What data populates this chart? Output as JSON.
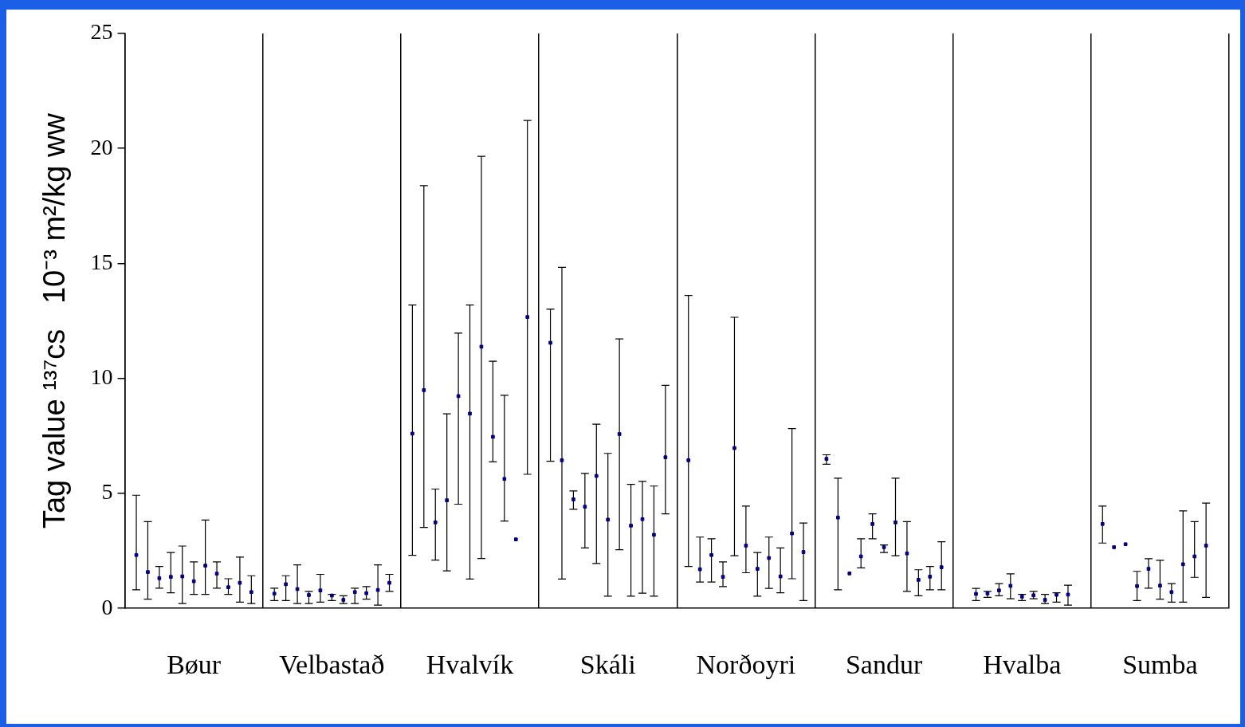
{
  "chart_data": {
    "type": "scatter",
    "ylabel": "Tag value ¹³⁷cs   10⁻³ m²/kg ww",
    "categories": [
      "Bøur",
      "Velbastað",
      "Hvalvík",
      "Skáli",
      "Norðoyri",
      "Sandur",
      "Hvalba",
      "Sumba"
    ],
    "ylim": [
      0,
      25
    ],
    "yticks": [
      0,
      5,
      10,
      15,
      20,
      25
    ],
    "grid": "x",
    "legend": false,
    "marker": "square",
    "series": [
      {
        "color": "#000080",
        "values": [
          2.32,
          0.64,
          7.6,
          11.55,
          6.44,
          6.5,
          null,
          3.67
        ],
        "errors": [
          [
            0.81,
            4.92
          ],
          [
            0.34,
            0.88
          ],
          [
            2.31,
            13.19
          ],
          [
            6.4,
            13.01
          ],
          [
            1.82,
            13.61
          ],
          [
            6.27,
            6.68
          ],
          null,
          [
            2.84,
            4.45
          ]
        ]
      },
      {
        "color": "#000080",
        "values": [
          1.58,
          1.05,
          9.49,
          6.44,
          1.7,
          3.95,
          0.63,
          2.66
        ],
        "errors": [
          [
            0.4,
            3.77
          ],
          [
            0.34,
            1.42
          ],
          [
            3.52,
            18.38
          ],
          [
            1.28,
            14.83
          ],
          [
            1.15,
            3.1
          ],
          [
            0.81,
            5.66
          ],
          [
            0.34,
            0.87
          ],
          null
        ]
      },
      {
        "color": "#000080",
        "values": [
          1.31,
          0.84,
          3.74,
          4.74,
          2.32,
          1.52,
          0.65,
          2.79
        ],
        "errors": [
          [
            0.88,
            1.82
          ],
          [
            0.21,
            1.89
          ],
          [
            2.1,
            5.19
          ],
          [
            4.31,
            5.11
          ],
          [
            1.15,
            3.03
          ],
          null,
          [
            0.48,
            0.74
          ],
          null
        ]
      },
      {
        "color": "#000080",
        "values": [
          1.37,
          0.58,
          4.7,
          4.42,
          1.37,
          2.26,
          0.78,
          0.97
        ],
        "errors": [
          [
            0.68,
            2.43
          ],
          [
            0.21,
            0.74
          ],
          [
            1.63,
            8.46
          ],
          [
            2.63,
            5.87
          ],
          [
            0.95,
            2.02
          ],
          [
            1.76,
            3.03
          ],
          [
            0.55,
            1.08
          ],
          [
            0.34,
            1.61
          ]
        ]
      },
      {
        "color": "#000080",
        "values": [
          1.39,
          0.78,
          9.23,
          5.76,
          6.97,
          3.67,
          0.98,
          1.72
        ],
        "errors": [
          [
            0.21,
            2.71
          ],
          [
            0.27,
            1.48
          ],
          [
            4.53,
            11.97
          ],
          [
            1.95,
            8.01
          ],
          [
            2.29,
            12.66
          ],
          [
            3.03,
            4.11
          ],
          [
            0.42,
            1.5
          ],
          [
            0.88,
            2.16
          ]
        ]
      },
      {
        "color": "#000080",
        "values": [
          1.18,
          0.56,
          8.47,
          3.86,
          2.73,
          2.66,
          0.51,
          0.99
        ],
        "errors": [
          [
            0.61,
            2.02
          ],
          [
            0.34,
            0.61
          ],
          [
            1.28,
            13.19
          ],
          [
            0.53,
            6.74
          ],
          [
            1.55,
            4.45
          ],
          [
            2.43,
            2.76
          ],
          [
            0.34,
            0.61
          ],
          [
            0.4,
            2.09
          ]
        ]
      },
      {
        "color": "#000080",
        "values": [
          1.86,
          0.37,
          11.38,
          7.58,
          1.72,
          3.74,
          0.57,
          0.71
        ],
        "errors": [
          [
            0.61,
            3.84
          ],
          [
            0.21,
            0.55
          ],
          [
            2.17,
            19.66
          ],
          [
            2.55,
            11.72
          ],
          [
            0.53,
            2.43
          ],
          [
            2.29,
            5.66
          ],
          [
            0.42,
            0.74
          ],
          [
            0.27,
            1.08
          ]
        ]
      },
      {
        "color": "#000080",
        "values": [
          1.51,
          0.71,
          7.46,
          3.6,
          2.19,
          2.39,
          0.37,
          1.92
        ],
        "errors": [
          [
            0.88,
            2.02
          ],
          [
            0.21,
            0.88
          ],
          [
            6.37,
            10.75
          ],
          [
            0.53,
            5.39
          ],
          [
            0.87,
            3.1
          ],
          [
            0.74,
            3.77
          ],
          [
            0.21,
            0.61
          ],
          [
            0.27,
            4.24
          ]
        ]
      },
      {
        "color": "#000080",
        "values": [
          0.92,
          0.66,
          5.63,
          3.88,
          1.39,
          1.24,
          0.59,
          2.26
        ],
        "errors": [
          [
            0.61,
            1.29
          ],
          [
            0.4,
            0.95
          ],
          [
            3.8,
            9.27
          ],
          [
            0.66,
            5.52
          ],
          [
            0.68,
            2.63
          ],
          [
            0.55,
            1.68
          ],
          [
            0.27,
            0.68
          ],
          [
            1.35,
            3.77
          ]
        ]
      },
      {
        "color": "#000080",
        "values": [
          1.11,
          0.8,
          3.0,
          3.2,
          3.26,
          1.38,
          0.6,
          2.73
        ],
        "errors": [
          [
            0.27,
            2.23
          ],
          [
            0.14,
            1.89
          ],
          null,
          [
            0.53,
            5.32
          ],
          [
            1.29,
            7.82
          ],
          [
            0.81,
            1.82
          ],
          [
            0.14,
            1.01
          ],
          [
            0.48,
            4.58
          ]
        ]
      },
      {
        "color": "#000080",
        "values": [
          0.71,
          1.11,
          12.67,
          6.57,
          2.45,
          1.79,
          null,
          null
        ],
        "errors": [
          [
            0.21,
            1.42
          ],
          [
            0.74,
            1.48
          ],
          [
            5.83,
            21.22
          ],
          [
            4.11,
            9.7
          ],
          [
            0.34,
            3.71
          ],
          [
            0.81,
            2.9
          ],
          null,
          null
        ]
      }
    ]
  }
}
